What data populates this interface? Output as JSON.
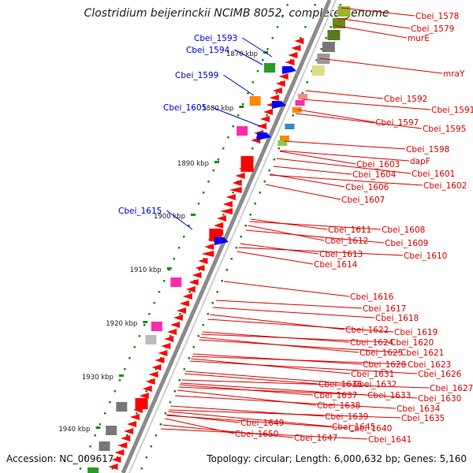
{
  "title": "Clostridium beijerinckii NCIMB 8052, complete genome",
  "footer": {
    "accession": "Accession: NC_009617",
    "topology": "Topology: circular; Length: 6,000,632 bp; Genes: 5,160"
  },
  "colors": {
    "forward_label": "#0000cc",
    "reverse_label": "#dd0000",
    "backbone": "#8a8a8a",
    "tick": "#1a8a1a",
    "cds_reverse": "#ff0000",
    "cds_forward": "#0000ff"
  },
  "scale_labels": [
    "1870 kbp",
    "1880 kbp",
    "1890 kbp",
    "1900 kbp",
    "1910 kbp",
    "1920 kbp",
    "1930 kbp",
    "1940 kbp"
  ],
  "forward_labels": [
    "Cbei_1593",
    "Cbei_1594",
    "Cbei_1599",
    "Cbei_1605",
    "Cbei_1615"
  ],
  "reverse_labels": [
    "Cbei_1578",
    "Cbei_1579",
    "murE",
    "mraY",
    "Cbei_1592",
    "Cbei_1591",
    "Cbei_1597",
    "Cbei_1595",
    "Cbei_1598",
    "dapF",
    "Cbei_1603",
    "Cbei_1601",
    "Cbei_1604",
    "Cbei_1602",
    "Cbei_1606",
    "Cbei_1607",
    "Cbei_1608",
    "Cbei_1611",
    "Cbei_1609",
    "Cbei_1612",
    "Cbei_1610",
    "Cbei_1613",
    "Cbei_1614",
    "Cbei_1616",
    "Cbei_1617",
    "Cbei_1618",
    "Cbei_1619",
    "Cbei_1622",
    "Cbei_1620",
    "Cbei_1624",
    "Cbei_1621",
    "Cbei_1625",
    "Cbei_1623",
    "Cbei_1628",
    "Cbei_1626",
    "Cbei_1631",
    "Cbei_1627",
    "Cbei_1636",
    "Cbei_1632",
    "Cbei_1630",
    "Cbei_1633",
    "Cbei_1637",
    "Cbei_1634",
    "Cbei_1638",
    "Cbei_1635",
    "Cbei_1639",
    "Cbei_1640",
    "Cbei_1645",
    "Cbei_1649",
    "Cbei_1641",
    "Cbei_1647",
    "Cbei_1650"
  ]
}
